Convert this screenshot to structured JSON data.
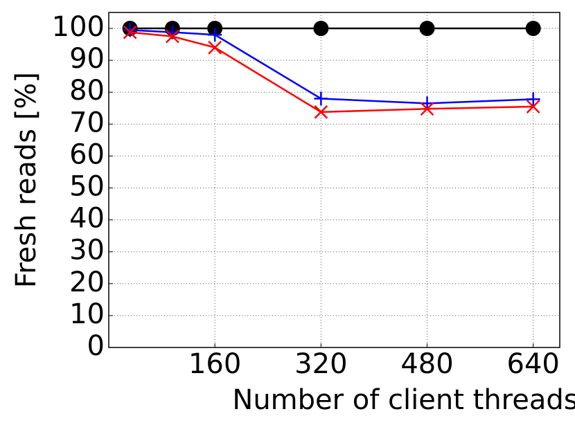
{
  "chart_data": {
    "type": "line",
    "x_label": "Number of client threads",
    "y_label": "Fresh reads [%]",
    "x": [
      32,
      96,
      160,
      320,
      480,
      640
    ],
    "series": [
      {
        "color": "#000000",
        "marker": "o",
        "values": [
          100,
          100,
          100,
          100,
          100,
          100
        ]
      },
      {
        "color": "#0000ff",
        "marker": "+",
        "values": [
          99.5,
          98.8,
          98,
          78,
          76.5,
          77.8
        ]
      },
      {
        "color": "#ff0000",
        "marker": "x",
        "values": [
          98.8,
          97.5,
          94,
          73.8,
          74.8,
          75.5
        ]
      }
    ],
    "xlim": [
      0,
      680
    ],
    "xticks": [
      160,
      320,
      480,
      640
    ],
    "ylim": [
      0,
      105
    ],
    "yticks": [
      0,
      10,
      20,
      30,
      40,
      50,
      60,
      70,
      80,
      90,
      100
    ],
    "grid": true
  }
}
